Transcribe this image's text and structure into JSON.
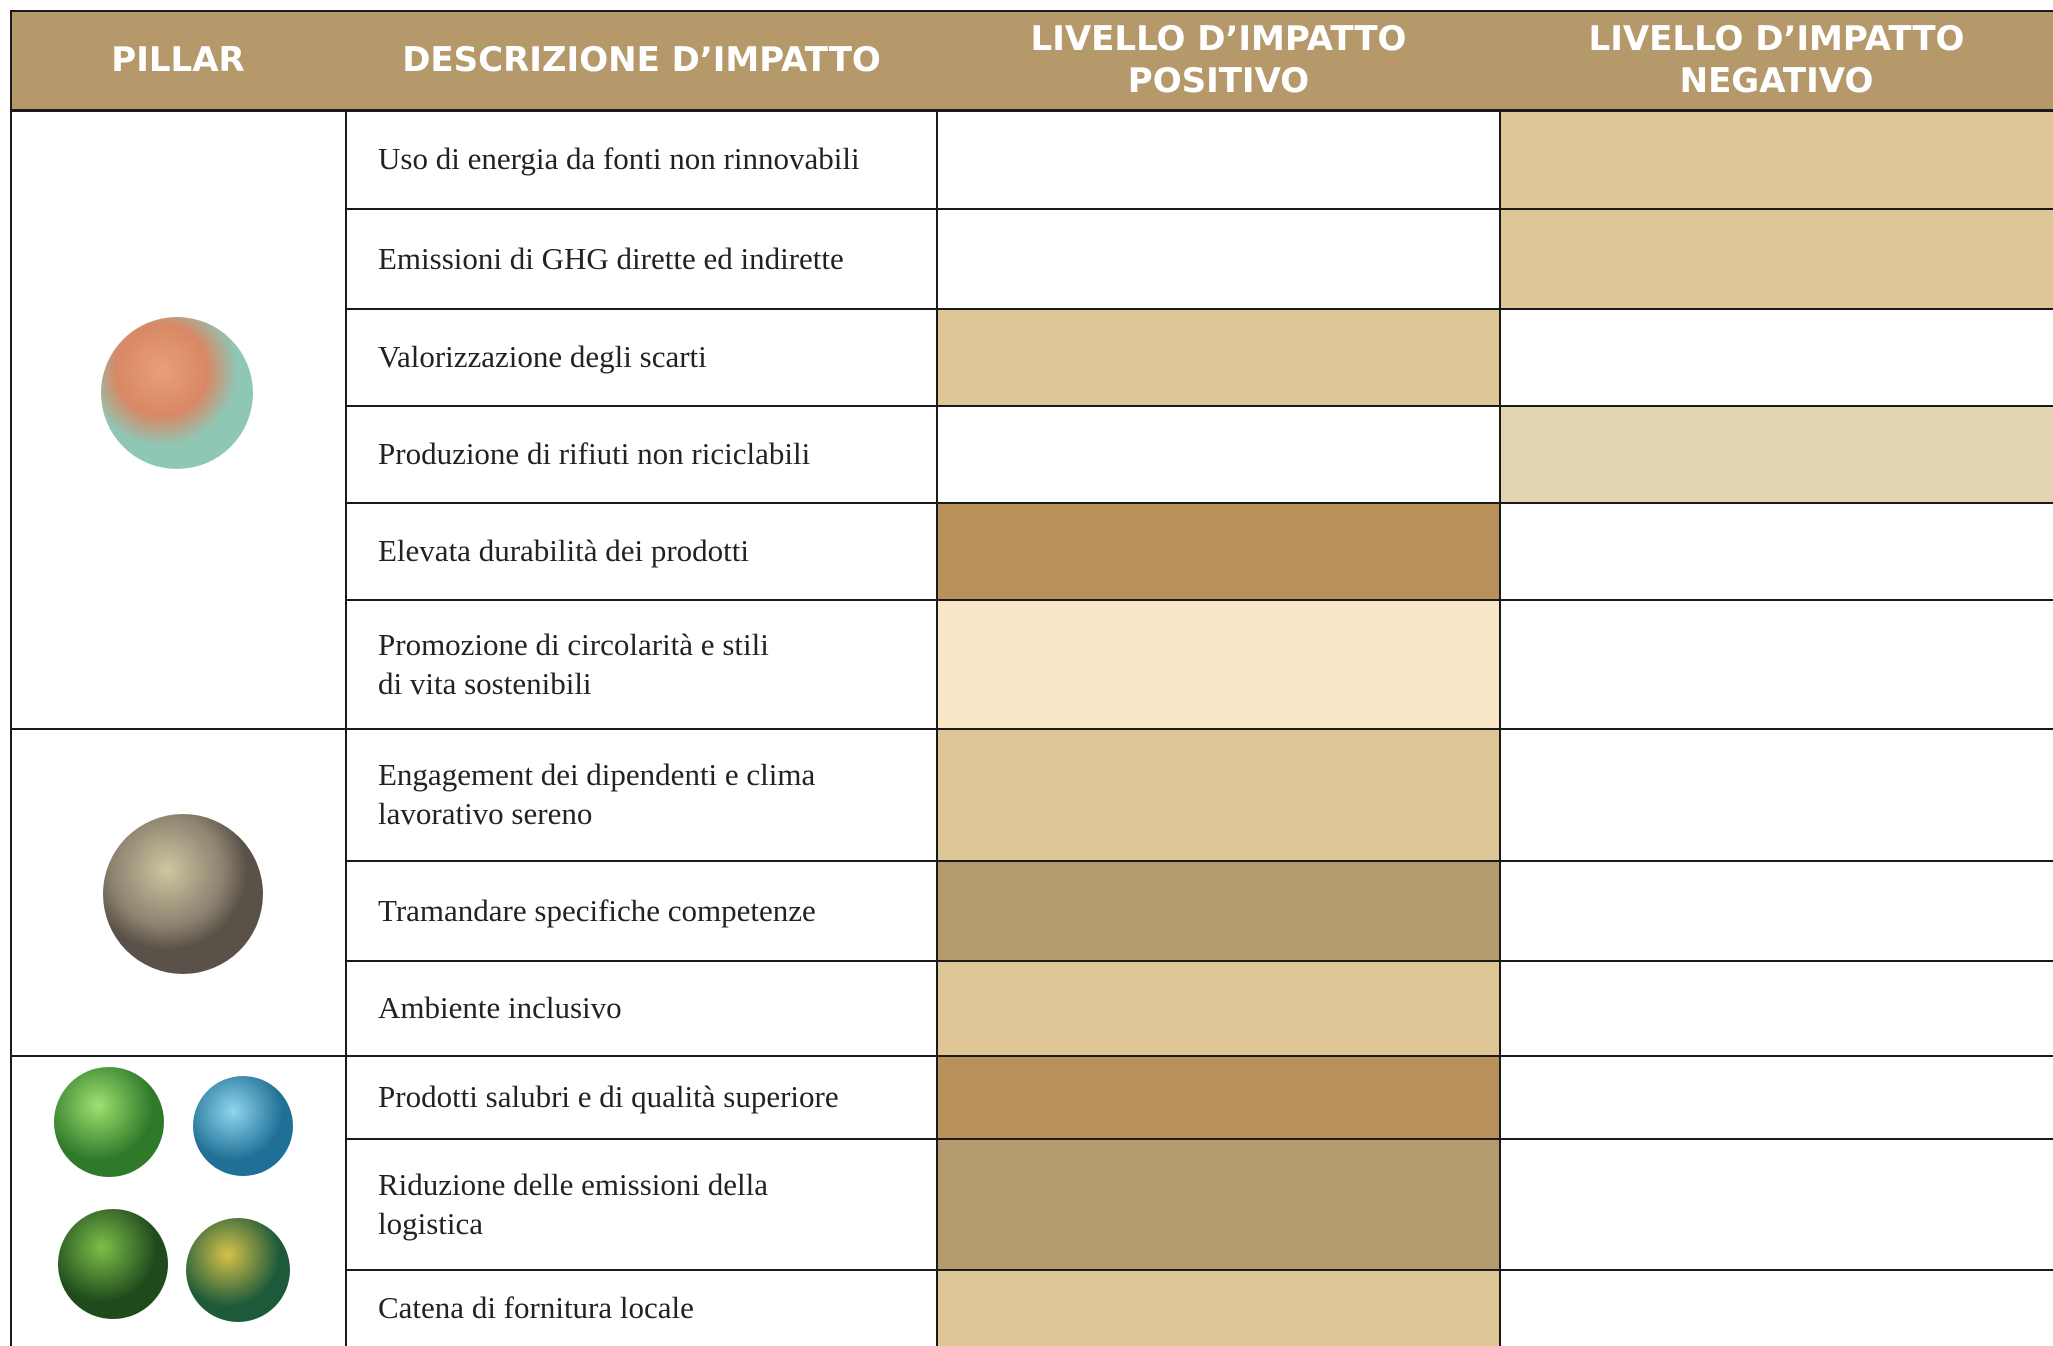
{
  "header": {
    "columns": [
      "PILLAR",
      "DESCRIZIONE D’IMPATTO",
      "LIVELLO D’IMPATTO\nPOSITIVO",
      "LIVELLO D’IMPATTO\nNEGATIVO"
    ]
  },
  "table": {
    "rows": [
      {
        "description": "Uso di energia da fonti non rinnovabili",
        "positive_color": null,
        "negative_color": "#dfc697"
      },
      {
        "description": "Emissioni di GHG dirette ed indirette",
        "positive_color": null,
        "negative_color": "#dfc697"
      },
      {
        "description": "Valorizzazione degli scarti",
        "positive_color": "#dfc697",
        "negative_color": null
      },
      {
        "description": "Produzione di rifiuti non riciclabili",
        "positive_color": null,
        "negative_color": "#e0d5b0"
      },
      {
        "description": "Elevata durabilità dei prodotti",
        "positive_color": "#b9925b",
        "negative_color": null
      },
      {
        "description": "Promozione di circolarità e stili\ndi vita sostenibili",
        "positive_color": "#f8e7c7",
        "negative_color": null
      },
      {
        "description": "Engagement dei dipendenti e clima\nlavorativo sereno",
        "positive_color": "#dfc697",
        "negative_color": null
      },
      {
        "description": "Tramandare specifiche competenze",
        "positive_color": "#b49b6e",
        "negative_color": null
      },
      {
        "description": "Ambiente inclusivo",
        "positive_color": "#dfc697",
        "negative_color": null
      },
      {
        "description": "Prodotti salubri e di qualità superiore",
        "positive_color": "#b9925b",
        "negative_color": null
      },
      {
        "description": "Riduzione delle emissioni della\nlogistica",
        "positive_color": "#b49b6e",
        "negative_color": null
      },
      {
        "description": "Catena di fornitura locale",
        "positive_color": "#dfc697",
        "negative_color": null
      }
    ]
  }
}
